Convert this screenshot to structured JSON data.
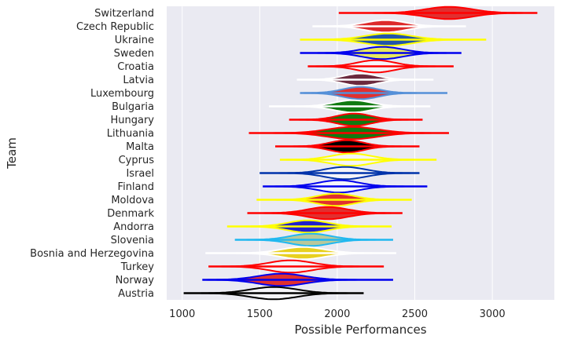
{
  "chart_data": {
    "type": "violin",
    "title": "",
    "xlabel": "Possible Performances",
    "ylabel": "Team",
    "xlim": [
      900,
      3400
    ],
    "xticks": [
      1000,
      1500,
      2000,
      2500,
      3000
    ],
    "xtick_labels": [
      "1000",
      "1500",
      "2000",
      "2500",
      "3000"
    ],
    "grid": true,
    "series": [
      {
        "team": "Switzerland",
        "line_color": "#ff0000",
        "fill_color": "#e03030",
        "min": 2010,
        "max": 3290,
        "median": 2720,
        "spread": 150
      },
      {
        "team": "Czech Republic",
        "line_color": "#ffffff",
        "fill_color": "#dd2a2a",
        "min": 1840,
        "max": 2830,
        "median": 2310,
        "spread": 130
      },
      {
        "team": "Ukraine",
        "line_color": "#ffff00",
        "fill_color": "#2255aa",
        "min": 1760,
        "max": 2960,
        "median": 2330,
        "spread": 150
      },
      {
        "team": "Sweden",
        "line_color": "#0000ee",
        "fill_color": "#e8e860",
        "min": 1760,
        "max": 2800,
        "median": 2290,
        "spread": 130
      },
      {
        "team": "Croatia",
        "line_color": "#ff0000",
        "fill_color": "#f4f4f8",
        "min": 1810,
        "max": 2750,
        "median": 2250,
        "spread": 120
      },
      {
        "team": "Latvia",
        "line_color": "#ffffff",
        "fill_color": "#6b2a3e",
        "min": 1740,
        "max": 2620,
        "median": 2150,
        "spread": 110
      },
      {
        "team": "Luxembourg",
        "line_color": "#5590d8",
        "fill_color": "#e03030",
        "min": 1760,
        "max": 2710,
        "median": 2150,
        "spread": 115
      },
      {
        "team": "Bulgaria",
        "line_color": "#ffffff",
        "fill_color": "#107a10",
        "min": 1560,
        "max": 2600,
        "median": 2100,
        "spread": 120
      },
      {
        "team": "Hungary",
        "line_color": "#ff0000",
        "fill_color": "#107a10",
        "min": 1690,
        "max": 2550,
        "median": 2110,
        "spread": 110
      },
      {
        "team": "Lithuania",
        "line_color": "#ff0000",
        "fill_color": "#107a10",
        "min": 1430,
        "max": 2720,
        "median": 2100,
        "spread": 160
      },
      {
        "team": "Malta",
        "line_color": "#ff0000",
        "fill_color": "#000000",
        "min": 1600,
        "max": 2530,
        "median": 2060,
        "spread": 110
      },
      {
        "team": "Cyprus",
        "line_color": "#ffff00",
        "fill_color": "#f4f4f8",
        "min": 1630,
        "max": 2640,
        "median": 2090,
        "spread": 130
      },
      {
        "team": "Israel",
        "line_color": "#0033aa",
        "fill_color": "#f4f4f8",
        "min": 1500,
        "max": 2530,
        "median": 2050,
        "spread": 130
      },
      {
        "team": "Finland",
        "line_color": "#0000ee",
        "fill_color": "#f4f4f8",
        "min": 1520,
        "max": 2580,
        "median": 2010,
        "spread": 130
      },
      {
        "team": "Moldova",
        "line_color": "#ffff00",
        "fill_color": "#e03030",
        "min": 1480,
        "max": 2480,
        "median": 1990,
        "spread": 120
      },
      {
        "team": "Denmark",
        "line_color": "#ff0000",
        "fill_color": "#e03030",
        "min": 1420,
        "max": 2420,
        "median": 1940,
        "spread": 130
      },
      {
        "team": "Andorra",
        "line_color": "#ffff00",
        "fill_color": "#2020cc",
        "min": 1290,
        "max": 2350,
        "median": 1810,
        "spread": 130
      },
      {
        "team": "Slovenia",
        "line_color": "#20b8f0",
        "fill_color": "#b8c89a",
        "min": 1340,
        "max": 2360,
        "median": 1830,
        "spread": 130
      },
      {
        "team": "Bosnia and Herzegovina",
        "line_color": "#ffffff",
        "fill_color": "#e8d020",
        "min": 1150,
        "max": 2380,
        "median": 1780,
        "spread": 140
      },
      {
        "team": "Turkey",
        "line_color": "#ff0000",
        "fill_color": "#f4f4f8",
        "min": 1170,
        "max": 2300,
        "median": 1700,
        "spread": 140
      },
      {
        "team": "Norway",
        "line_color": "#0000ee",
        "fill_color": "#e03030",
        "min": 1130,
        "max": 2360,
        "median": 1640,
        "spread": 150
      },
      {
        "team": "Austria",
        "line_color": "#000000",
        "fill_color": "#f4f4f8",
        "min": 1010,
        "max": 2170,
        "median": 1590,
        "spread": 150
      }
    ]
  }
}
